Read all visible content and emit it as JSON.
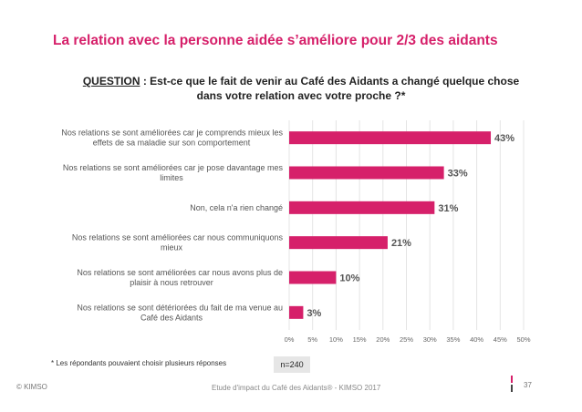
{
  "title": "La relation avec la personne aidée s’améliore pour 2/3 des aidants",
  "question": {
    "label": "QUESTION",
    "separator": " : ",
    "text": "Est-ce que le fait de venir au Café des Aidants a changé quelque chose dans votre relation avec votre proche ?*"
  },
  "chart_data": {
    "type": "bar",
    "orientation": "horizontal",
    "categories": [
      [
        "Nos relations se sont améliorées car je comprends mieux les",
        "effets de sa maladie sur son comportement"
      ],
      [
        "Nos relations se sont améliorées car je pose davantage mes",
        "limites"
      ],
      [
        "Non, cela n'a rien changé"
      ],
      [
        "Nos relations se sont améliorées car nous communiquons",
        "mieux"
      ],
      [
        "Nos relations se sont améliorées car nous avons plus de",
        "plaisir à nous retrouver"
      ],
      [
        "Nos relations se sont détériorées du fait de ma venue au",
        "Café des Aidants"
      ]
    ],
    "values": [
      43,
      33,
      31,
      21,
      10,
      3
    ],
    "value_labels": [
      "43%",
      "33%",
      "31%",
      "21%",
      "10%",
      "3%"
    ],
    "xlim": [
      0,
      50
    ],
    "x_ticks": [
      "0%",
      "5%",
      "10%",
      "15%",
      "20%",
      "25%",
      "30%",
      "35%",
      "40%",
      "45%",
      "50%"
    ],
    "grid": true,
    "bar_color": "#d6206a"
  },
  "footnote": "* Les répondants  pouvaient choisir plusieurs réponses",
  "sample_size": "n=240",
  "footer": {
    "copyright": "© KIMSO",
    "source": "Etude d'impact du Café des Aidants® - KIMSO 2017",
    "page": "37"
  }
}
